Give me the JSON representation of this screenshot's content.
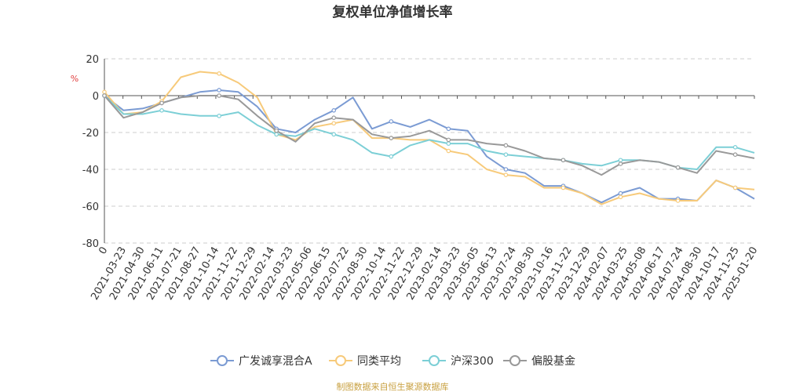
{
  "chart_data": {
    "type": "line",
    "title": "复权单位净值增长率",
    "y_unit": "%",
    "ylim": [
      -80,
      20
    ],
    "y_ticks": [
      20,
      0,
      -20,
      -40,
      -60,
      -80
    ],
    "x_first_label": "0",
    "x_tick_labels": [
      "2021-03-23",
      "2021-04-30",
      "2021-06-11",
      "2021-07-21",
      "2021-08-27",
      "2021-10-14",
      "2021-11-22",
      "2021-12-29",
      "2022-02-14",
      "2022-03-23",
      "2022-05-06",
      "2022-06-15",
      "2022-07-22",
      "2022-08-30",
      "2022-10-14",
      "2022-11-22",
      "2022-12-29",
      "2023-02-14",
      "2023-03-23",
      "2023-05-05",
      "2023-06-13",
      "2023-07-24",
      "2023-08-30",
      "2023-10-16",
      "2023-11-22",
      "2023-12-29",
      "2024-02-07",
      "2024-03-25",
      "2024-05-08",
      "2024-06-17",
      "2024-07-24",
      "2024-08-30",
      "2024-10-17",
      "2024-11-25",
      "2025-01-20"
    ],
    "grid": true,
    "legend_position": "bottom",
    "series": [
      {
        "name": "广发诚享混合A",
        "color": "#7b9bd3",
        "values": [
          0,
          -8,
          -7,
          -4,
          -1,
          2,
          3,
          2,
          -6,
          -18,
          -20,
          -13,
          -8,
          -1,
          -18,
          -14,
          -17,
          -13,
          -18,
          -19,
          -33,
          -40,
          -42,
          -49,
          -49,
          -53,
          -58,
          -53,
          -50,
          -56,
          -56,
          -57,
          -46,
          -50,
          -56
        ]
      },
      {
        "name": "同类平均",
        "color": "#f7ca7a",
        "values": [
          2,
          -10,
          -9,
          -3,
          10,
          13,
          12,
          7,
          -1,
          -21,
          -24,
          -17,
          -15,
          -13,
          -23,
          -23,
          -24,
          -24,
          -30,
          -32,
          -40,
          -43,
          -44,
          -50,
          -50,
          -53,
          -59,
          -55,
          -53,
          -56,
          -57,
          -57,
          -46,
          -50,
          -51
        ]
      },
      {
        "name": "沪深300",
        "color": "#7ccfd6",
        "values": [
          0,
          -10,
          -10,
          -8,
          -10,
          -11,
          -11,
          -9,
          -16,
          -21,
          -22,
          -18,
          -21,
          -24,
          -31,
          -33,
          -27,
          -24,
          -26,
          -26,
          -30,
          -32,
          -33,
          -34,
          -35,
          -37,
          -38,
          -35,
          -35,
          -36,
          -39,
          -40,
          -28,
          -28,
          -31
        ]
      },
      {
        "name": "偏股基金",
        "color": "#999999",
        "values": [
          0,
          -12,
          -9,
          -4,
          -1,
          0,
          0,
          -2,
          -11,
          -19,
          -25,
          -15,
          -12,
          -13,
          -21,
          -23,
          -22,
          -19,
          -24,
          -24,
          -26,
          -27,
          -30,
          -34,
          -35,
          -38,
          -43,
          -37,
          -35,
          -36,
          -39,
          -42,
          -30,
          -32,
          -34
        ]
      }
    ]
  },
  "footer": {
    "source": "制图数据来自恒生聚源数据库"
  }
}
